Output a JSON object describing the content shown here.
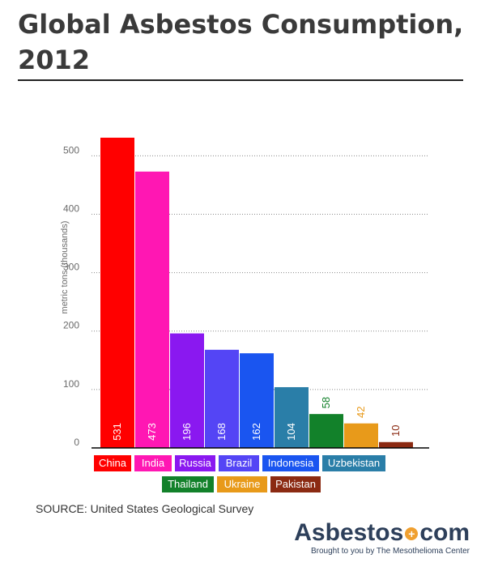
{
  "title": "Global Asbestos Consumption, 2012",
  "colors": {
    "China": "#ff0000",
    "India": "#ff17b3",
    "Russia": "#8a18f0",
    "Brazil": "#5445f5",
    "Indonesia": "#1a55f0",
    "Uzbekistan": "#2a7ea8",
    "Thailand": "#12812a",
    "Ukraine": "#e89a1a",
    "Pakistan": "#8b2a12",
    "axis": "#000000",
    "grid": "#8a8a8a"
  },
  "chart_data": {
    "type": "bar",
    "categories": [
      "China",
      "India",
      "Russia",
      "Brazil",
      "Indonesia",
      "Uzbekistan",
      "Thailand",
      "Ukraine",
      "Pakistan"
    ],
    "values": [
      531,
      473,
      196,
      168,
      162,
      104,
      58,
      42,
      10
    ],
    "value_labels": [
      "531",
      "473",
      "196",
      "168",
      "162",
      "104",
      "58",
      "42",
      "10"
    ],
    "title": "Global Asbestos Consumption, 2012",
    "xlabel": "",
    "ylabel": "metric tons (thousands)",
    "ylim": [
      0,
      531
    ],
    "yticks": [
      0,
      100,
      200,
      300,
      400,
      500
    ],
    "grid": "horizontal dotted",
    "legend": [
      "China",
      "India",
      "Russia",
      "Brazil",
      "Indonesia",
      "Uzbekistan",
      "Thailand",
      "Ukraine",
      "Pakistan"
    ]
  },
  "source": "SOURCE: United States Geological Survey",
  "brand": {
    "name_left": "Asbestos",
    "name_right": "com",
    "tagline": "Brought to you by The Mesothelioma Center"
  }
}
